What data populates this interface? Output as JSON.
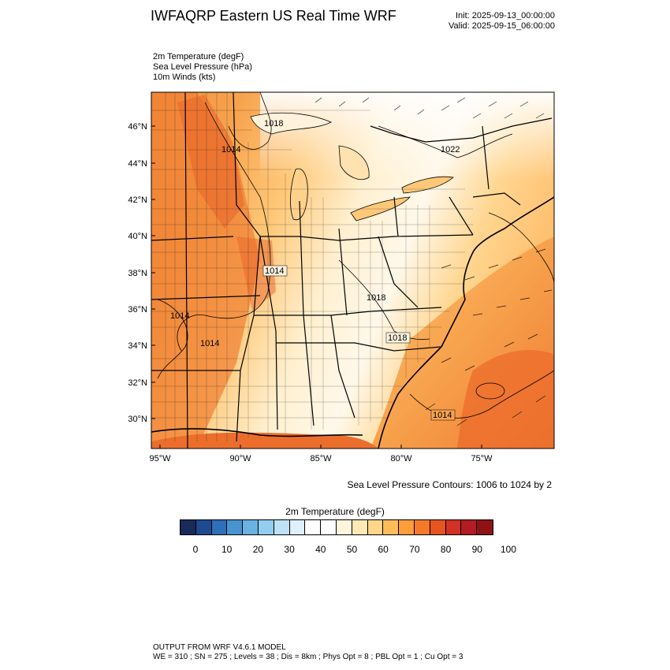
{
  "header": {
    "title": "IWFAQRP Eastern US Real Time WRF",
    "init": "Init: 2025-09-13_00:00:00",
    "valid": "Valid: 2025-09-15_06:00:00"
  },
  "variables": [
    "2m Temperature   (degF)",
    "Sea Level Pressure   (hPa)",
    "10m Winds   (kts)"
  ],
  "map": {
    "lat_labels": [
      "46°N",
      "44°N",
      "42°N",
      "40°N",
      "38°N",
      "36°N",
      "34°N",
      "32°N",
      "30°N"
    ],
    "lon_labels": [
      "95°W",
      "90°W",
      "85°W",
      "80°W",
      "75°W"
    ],
    "pressure_labels": [
      "1018",
      "1014",
      "1022",
      "1014",
      "1018",
      "1014",
      "1014",
      "1018",
      "1014"
    ],
    "contour_note": "Sea Level Pressure Contours: 1006 to 1024 by 2"
  },
  "colorbar": {
    "title": "2m Temperature  (degF)",
    "colors": [
      "#1a2a5a",
      "#1f4a8f",
      "#2d6fb8",
      "#4a93d1",
      "#6ab2e2",
      "#93cdef",
      "#bde2f6",
      "#dff0fa",
      "#ffffff",
      "#ffffff",
      "#fff5dc",
      "#ffe8b4",
      "#ffd68a",
      "#ffbd5a",
      "#ff9d3a",
      "#f47a2a",
      "#e65420",
      "#d23125",
      "#b31c24",
      "#8f1315"
    ],
    "labels": [
      "0",
      "10",
      "20",
      "30",
      "40",
      "50",
      "60",
      "70",
      "80",
      "90",
      "100"
    ]
  },
  "footer": {
    "line1": "OUTPUT FROM WRF V4.6.1 MODEL",
    "line2": "WE = 310 ; SN = 275 ; Levels = 38 ; Dis = 8km ; Phys Opt = 8 ; PBL Opt = 1 ; Cu Opt = 3"
  }
}
